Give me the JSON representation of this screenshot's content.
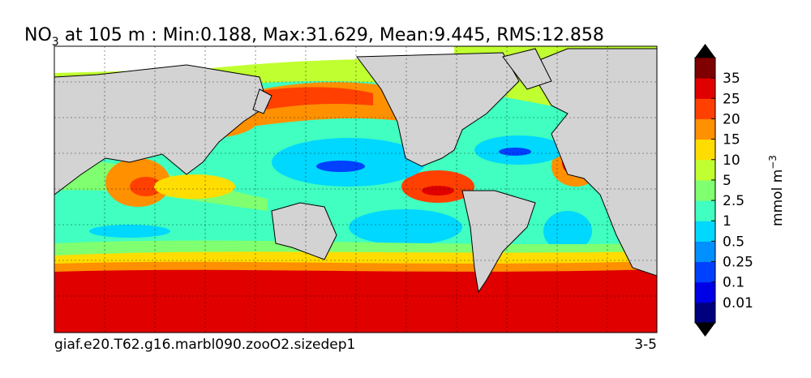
{
  "title": {
    "text": "NO",
    "subscript": "3",
    "rest": " at 105 m : Min:0.188, Max:31.629, Mean:9.445, RMS:12.858"
  },
  "colorbar": {
    "levels": [
      0.01,
      0.1,
      0.25,
      0.5,
      1,
      2.5,
      5,
      10,
      15,
      20,
      25,
      35
    ],
    "colors": [
      "#00007f",
      "#0000e6",
      "#0040ff",
      "#0090ff",
      "#00d8ff",
      "#40ffc0",
      "#80ff70",
      "#c0ff30",
      "#ffdd00",
      "#ff9000",
      "#ff4000",
      "#e00000",
      "#7f0000"
    ],
    "unit": "mmol m",
    "unit_superscript": "−3"
  },
  "footer": {
    "left": "giaf.e20.T62.g16.marbl090.zooO2.sizedep1",
    "right": "3-5"
  }
}
